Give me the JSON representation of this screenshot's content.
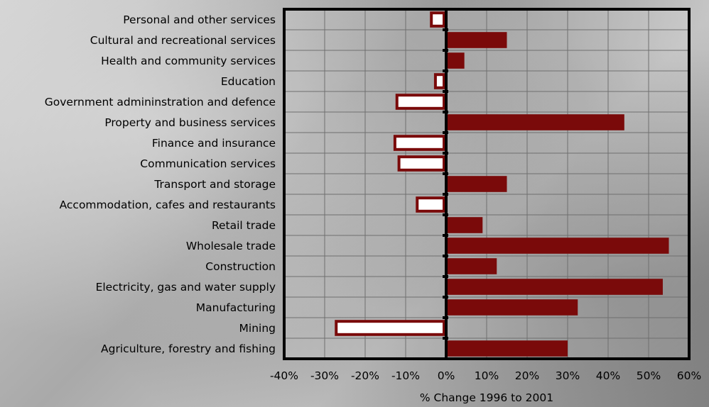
{
  "chart_data": {
    "type": "bar",
    "orientation": "horizontal",
    "title": "",
    "xlabel": "% Change 1996 to 2001",
    "ylabel": "",
    "xlim": [
      -40,
      60
    ],
    "x_ticks": [
      "-40%",
      "-30%",
      "-20%",
      "-10%",
      "0%",
      "10%",
      "20%",
      "30%",
      "40%",
      "50%",
      "60%"
    ],
    "grid": true,
    "legend": "none",
    "colors": {
      "positive_fill": "#7a0a0a",
      "negative_fill": "#ffffff",
      "negative_stroke": "#7a0a0a"
    },
    "categories": [
      "Personal and other services",
      "Cultural and recreational services",
      "Health and community services",
      "Education",
      "Government admininstration and defence",
      "Property and business services",
      "Finance and insurance",
      "Communication services",
      "Transport and storage",
      "Accommodation, cafes and restaurants",
      "Retail trade",
      "Wholesale trade",
      "Construction",
      "Electricity, gas and water supply",
      "Manufacturing",
      "Mining",
      "Agriculture, forestry and fishing"
    ],
    "values": [
      -4,
      15,
      4.5,
      -3,
      -12.5,
      44,
      -13,
      -12,
      15,
      -7.5,
      9,
      55,
      12.5,
      53.5,
      32.5,
      -27.5,
      30
    ]
  }
}
